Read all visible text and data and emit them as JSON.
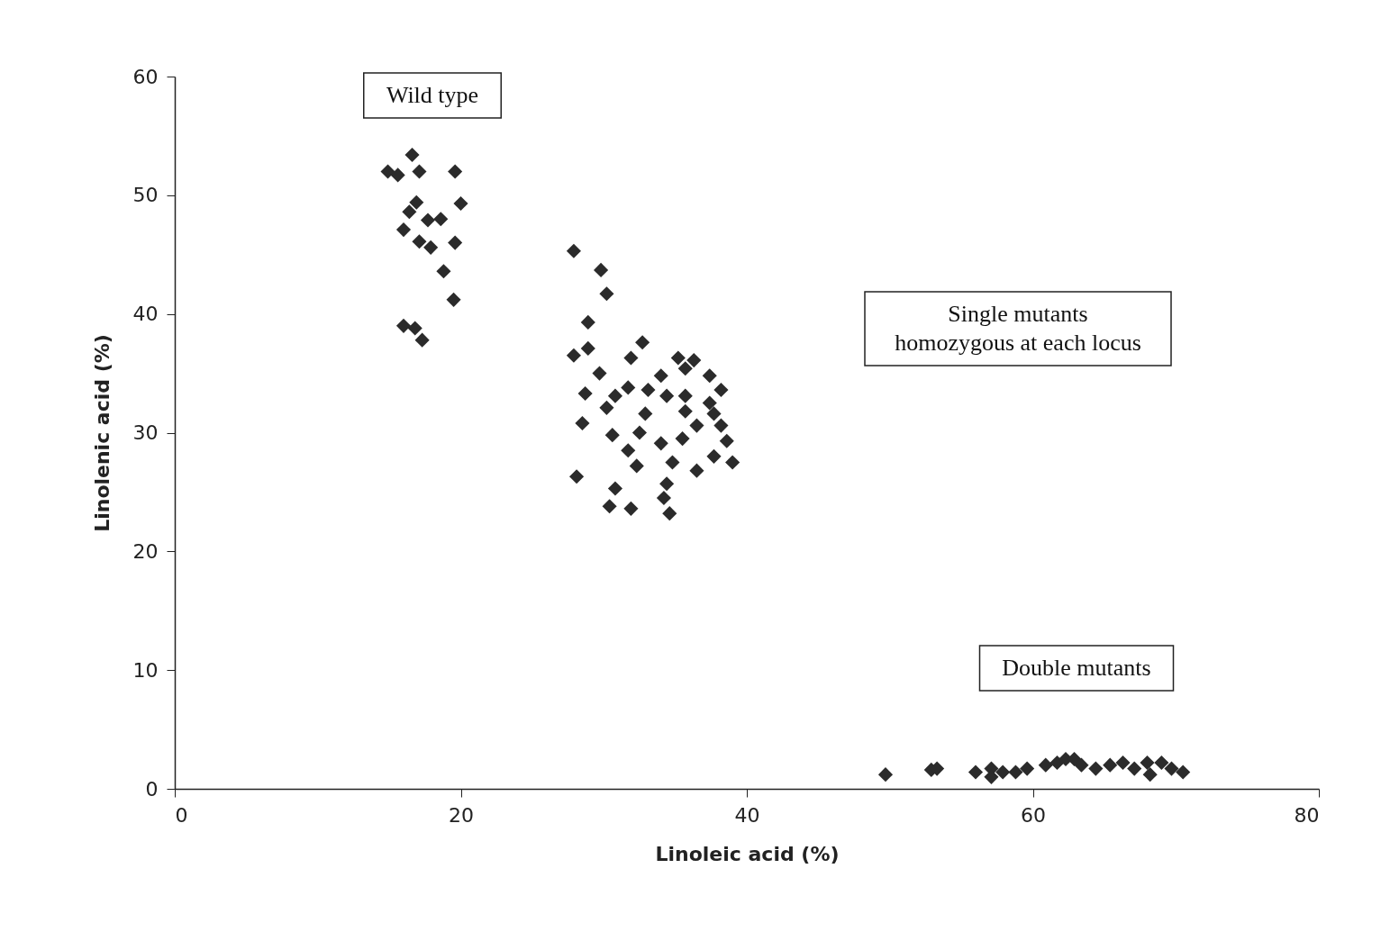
{
  "chart_data": {
    "type": "scatter",
    "xlabel": "Linoleic acid (%)",
    "ylabel": "Linolenic acid (%)",
    "xlim": [
      0,
      80
    ],
    "xticks": [
      0,
      20,
      40,
      60,
      80
    ],
    "ylim": [
      0,
      60
    ],
    "yticks": [
      0,
      10,
      20,
      30,
      40,
      50,
      60
    ],
    "grid": false,
    "marker": "diamond",
    "series": [
      {
        "color": "#2b2b2b",
        "x": [
          14.9,
          15.6,
          16.6,
          17.1,
          19.6,
          16.9,
          20.0,
          16.0,
          17.7,
          18.6,
          17.1,
          17.9,
          19.6,
          18.8,
          19.5,
          16.0,
          16.8,
          17.3,
          16.4,
          27.9,
          29.8,
          30.2,
          28.9,
          27.9,
          28.9,
          31.9,
          32.7,
          29.7,
          28.7,
          30.2,
          31.7,
          30.8,
          28.5,
          30.6,
          31.7,
          32.3,
          28.1,
          30.8,
          31.9,
          30.4,
          35.2,
          36.3,
          34.0,
          37.4,
          38.2,
          34.4,
          35.7,
          37.7,
          32.9,
          36.5,
          38.2,
          32.5,
          34.0,
          35.5,
          34.8,
          36.5,
          34.4,
          34.2,
          34.6,
          38.6,
          37.7,
          39.0,
          35.7,
          33.1,
          37.4,
          35.7,
          49.7,
          52.9,
          53.3,
          56.0,
          57.1,
          57.9,
          58.8,
          59.6,
          60.9,
          61.7,
          62.3,
          62.9,
          63.4,
          64.4,
          65.4,
          66.3,
          67.1,
          68.0,
          69.0,
          69.7,
          70.5,
          57.1,
          68.2
        ],
        "values": [
          52.0,
          51.7,
          53.4,
          52.0,
          52.0,
          49.4,
          49.3,
          47.1,
          47.9,
          48.0,
          46.1,
          45.6,
          46.0,
          43.6,
          41.2,
          39.0,
          38.8,
          37.8,
          48.6,
          45.3,
          43.7,
          41.7,
          39.3,
          36.5,
          37.1,
          36.3,
          37.6,
          35.0,
          33.3,
          32.1,
          33.8,
          33.1,
          30.8,
          29.8,
          28.5,
          27.2,
          26.3,
          25.3,
          23.6,
          23.8,
          36.3,
          36.1,
          34.8,
          34.8,
          33.6,
          33.1,
          31.8,
          31.6,
          31.6,
          30.6,
          30.6,
          30.0,
          29.1,
          29.5,
          27.5,
          26.8,
          25.7,
          24.5,
          23.2,
          29.3,
          28.0,
          27.5,
          33.1,
          33.6,
          32.5,
          35.4,
          1.2,
          1.6,
          1.7,
          1.4,
          1.7,
          1.4,
          1.4,
          1.7,
          2.0,
          2.2,
          2.5,
          2.5,
          2.0,
          1.7,
          2.0,
          2.2,
          1.7,
          2.2,
          2.2,
          1.7,
          1.4,
          1.0,
          1.2
        ]
      }
    ],
    "annotations": [
      "Wild type",
      "Single mutants\nhomozygous at each locus",
      "Double mutants"
    ]
  }
}
